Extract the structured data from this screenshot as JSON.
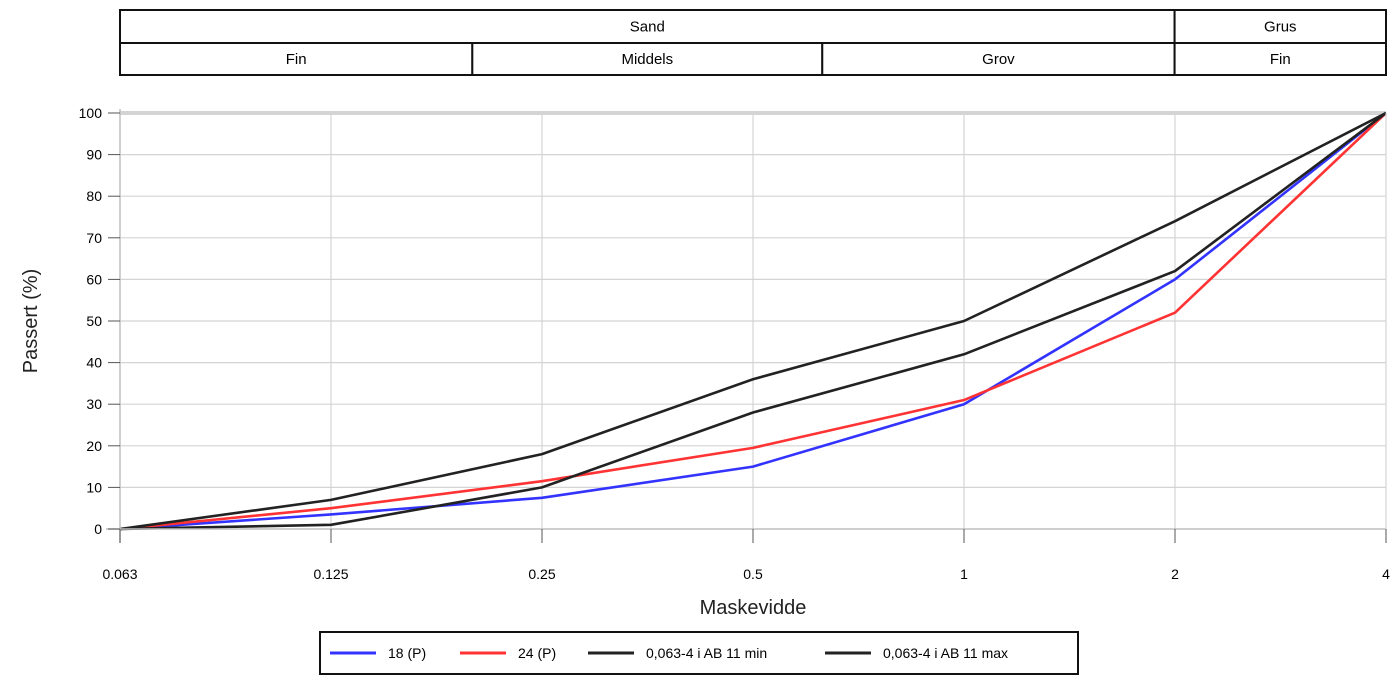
{
  "classification": {
    "top_row": [
      {
        "label": "Sand",
        "from": 0.063,
        "to": 2
      },
      {
        "label": "Grus",
        "from": 2,
        "to": 4
      }
    ],
    "bottom_row": [
      {
        "label": "Fin",
        "from": 0.063,
        "to": 0.2
      },
      {
        "label": "Middels",
        "from": 0.2,
        "to": 0.63
      },
      {
        "label": "Grov",
        "from": 0.63,
        "to": 2
      },
      {
        "label": "Fin",
        "from": 2,
        "to": 4
      }
    ]
  },
  "chart_data": {
    "type": "line",
    "x": [
      "0.063",
      "0.125",
      "0.25",
      "0.5",
      "1",
      "2",
      "4"
    ],
    "x_scale": "categorical-log-sieve",
    "xlabel": "Maskevidde",
    "ylabel": "Passert (%)",
    "ylim": [
      0,
      100
    ],
    "yticks": [
      0,
      10,
      20,
      30,
      40,
      50,
      60,
      70,
      80,
      90,
      100
    ],
    "grid": true,
    "legend_position": "bottom",
    "series": [
      {
        "name": "18 (P)",
        "color": "#3333ff",
        "values": [
          0,
          3.5,
          7.5,
          15,
          30,
          60,
          100
        ]
      },
      {
        "name": "24 (P)",
        "color": "#ff3333",
        "values": [
          0,
          5,
          11.5,
          19.5,
          31,
          52,
          100
        ]
      },
      {
        "name": "0,063-4 i AB 11 min",
        "color": "#222222",
        "values": [
          0,
          1,
          10,
          28,
          42,
          62,
          100
        ]
      },
      {
        "name": "0,063-4 i AB 11 max",
        "color": "#222222",
        "values": [
          0,
          7,
          18,
          36,
          50,
          74,
          100
        ]
      }
    ]
  }
}
